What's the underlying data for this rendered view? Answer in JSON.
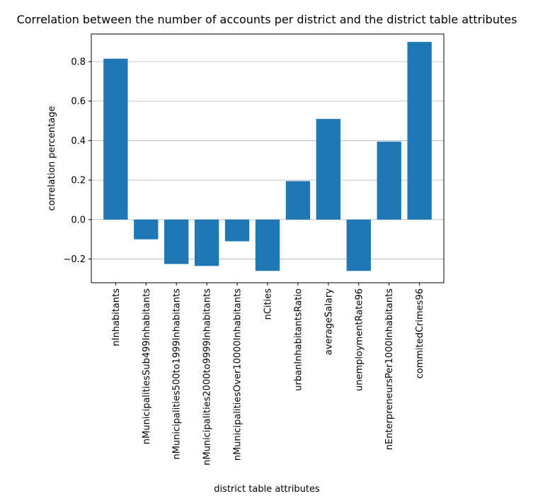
{
  "chart_data": {
    "type": "bar",
    "title": "Correlation between the number of accounts per district and the district table attributes",
    "xlabel": "district table attributes",
    "ylabel": "correlation percentage",
    "categories": [
      "nInhabitants",
      "nMunicipalitiesSub499Inhabitants",
      "nMunicipalities500to1999Inhabitants",
      "nMunicipalities2000to9999Inhabitants",
      "nMunicipalitiesOver10000Inhabitants",
      "nCities",
      "urbanInhabitantsRatio",
      "averageSalary",
      "unemploymentRate96",
      "nEnterpreneursPer1000Inhabitants",
      "commitedCrimes96"
    ],
    "values": [
      0.815,
      -0.1,
      -0.225,
      -0.235,
      -0.11,
      -0.26,
      0.195,
      0.51,
      -0.26,
      0.395,
      0.9
    ],
    "ylim": [
      -0.32,
      0.94
    ],
    "yticks": [
      -0.2,
      0.0,
      0.2,
      0.4,
      0.6,
      0.8
    ],
    "ytick_labels": [
      "−0.2",
      "0.0",
      "0.2",
      "0.4",
      "0.6",
      "0.8"
    ],
    "grid": "y",
    "bar_color": "#1f77b4"
  }
}
